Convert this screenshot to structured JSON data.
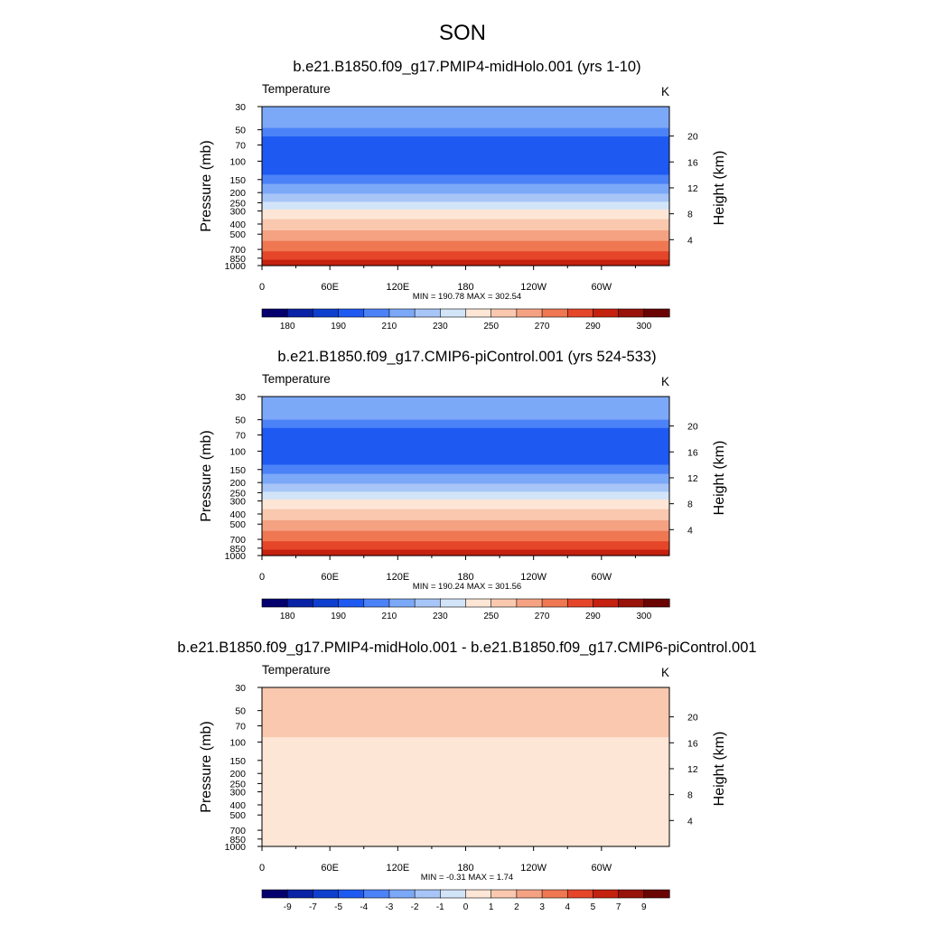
{
  "figure_title": "SON",
  "chart_data": [
    {
      "type": "heatmap",
      "title": "b.e21.B1850.f09_g17.PMIP4-midHolo.001 (yrs 1-10)",
      "variable": "Temperature",
      "units": "K",
      "ylabel": "Pressure (mb)",
      "y2label": "Height (km)",
      "x_ticks": [
        "0",
        "60E",
        "120E",
        "180",
        "120W",
        "60W"
      ],
      "x_tick_values": [
        0,
        60,
        120,
        180,
        240,
        300
      ],
      "xlim": [
        0,
        360
      ],
      "y_ticks": [
        "30",
        "50",
        "70",
        "100",
        "150",
        "200",
        "250",
        "300",
        "400",
        "500",
        "700",
        "850",
        "1000"
      ],
      "y_tick_values": [
        30,
        50,
        70,
        100,
        150,
        200,
        250,
        300,
        400,
        500,
        700,
        850,
        1000
      ],
      "ylim": [
        1000,
        30
      ],
      "y_scale": "log",
      "y2_ticks": [
        "4",
        "8",
        "12",
        "16",
        "20"
      ],
      "y2_tick_values": [
        4,
        8,
        12,
        16,
        20
      ],
      "stats": "MIN = 190.78  MAX = 302.54",
      "colorbar_labels": [
        "180",
        "190",
        "210",
        "230",
        "250",
        "270",
        "290",
        "300"
      ],
      "colorbar_levels": [
        180,
        185,
        190,
        200,
        210,
        220,
        230,
        240,
        250,
        260,
        270,
        280,
        290,
        295,
        300
      ],
      "bands": [
        {
          "top": 30,
          "bottom": 48,
          "value": 215
        },
        {
          "top": 48,
          "bottom": 58,
          "value": 205
        },
        {
          "top": 58,
          "bottom": 135,
          "value": 195
        },
        {
          "top": 135,
          "bottom": 165,
          "value": 205
        },
        {
          "top": 165,
          "bottom": 205,
          "value": 215
        },
        {
          "top": 205,
          "bottom": 245,
          "value": 225
        },
        {
          "top": 245,
          "bottom": 290,
          "value": 235
        },
        {
          "top": 290,
          "bottom": 360,
          "value": 245
        },
        {
          "top": 360,
          "bottom": 460,
          "value": 255
        },
        {
          "top": 460,
          "bottom": 580,
          "value": 265
        },
        {
          "top": 580,
          "bottom": 730,
          "value": 275
        },
        {
          "top": 730,
          "bottom": 880,
          "value": 285
        },
        {
          "top": 880,
          "bottom": 1000,
          "value": 292
        }
      ]
    },
    {
      "type": "heatmap",
      "title": "b.e21.B1850.f09_g17.CMIP6-piControl.001 (yrs 524-533)",
      "variable": "Temperature",
      "units": "K",
      "ylabel": "Pressure (mb)",
      "y2label": "Height (km)",
      "x_ticks": [
        "0",
        "60E",
        "120E",
        "180",
        "120W",
        "60W"
      ],
      "x_tick_values": [
        0,
        60,
        120,
        180,
        240,
        300
      ],
      "xlim": [
        0,
        360
      ],
      "y_ticks": [
        "30",
        "50",
        "70",
        "100",
        "150",
        "200",
        "250",
        "300",
        "400",
        "500",
        "700",
        "850",
        "1000"
      ],
      "y_tick_values": [
        30,
        50,
        70,
        100,
        150,
        200,
        250,
        300,
        400,
        500,
        700,
        850,
        1000
      ],
      "ylim": [
        1000,
        30
      ],
      "y_scale": "log",
      "y2_ticks": [
        "4",
        "8",
        "12",
        "16",
        "20"
      ],
      "y2_tick_values": [
        4,
        8,
        12,
        16,
        20
      ],
      "stats": "MIN = 190.24  MAX = 301.56",
      "colorbar_labels": [
        "180",
        "190",
        "210",
        "230",
        "250",
        "270",
        "290",
        "300"
      ],
      "colorbar_levels": [
        180,
        185,
        190,
        200,
        210,
        220,
        230,
        240,
        250,
        260,
        270,
        280,
        290,
        295,
        300
      ],
      "bands": [
        {
          "top": 30,
          "bottom": 50,
          "value": 215
        },
        {
          "top": 50,
          "bottom": 60,
          "value": 205
        },
        {
          "top": 60,
          "bottom": 135,
          "value": 195
        },
        {
          "top": 135,
          "bottom": 165,
          "value": 205
        },
        {
          "top": 165,
          "bottom": 205,
          "value": 215
        },
        {
          "top": 205,
          "bottom": 245,
          "value": 225
        },
        {
          "top": 245,
          "bottom": 290,
          "value": 235
        },
        {
          "top": 290,
          "bottom": 360,
          "value": 245
        },
        {
          "top": 360,
          "bottom": 460,
          "value": 255
        },
        {
          "top": 460,
          "bottom": 580,
          "value": 265
        },
        {
          "top": 580,
          "bottom": 730,
          "value": 275
        },
        {
          "top": 730,
          "bottom": 880,
          "value": 285
        },
        {
          "top": 880,
          "bottom": 1000,
          "value": 292
        }
      ]
    },
    {
      "type": "heatmap",
      "title": "b.e21.B1850.f09_g17.PMIP4-midHolo.001 - b.e21.B1850.f09_g17.CMIP6-piControl.001",
      "variable": "Temperature",
      "units": "K",
      "ylabel": "Pressure (mb)",
      "y2label": "Height (km)",
      "x_ticks": [
        "0",
        "60E",
        "120E",
        "180",
        "120W",
        "60W"
      ],
      "x_tick_values": [
        0,
        60,
        120,
        180,
        240,
        300
      ],
      "xlim": [
        0,
        360
      ],
      "y_ticks": [
        "30",
        "50",
        "70",
        "100",
        "150",
        "200",
        "250",
        "300",
        "400",
        "500",
        "700",
        "850",
        "1000"
      ],
      "y_tick_values": [
        30,
        50,
        70,
        100,
        150,
        200,
        250,
        300,
        400,
        500,
        700,
        850,
        1000
      ],
      "ylim": [
        1000,
        30
      ],
      "y_scale": "log",
      "y2_ticks": [
        "4",
        "8",
        "12",
        "16",
        "20"
      ],
      "y2_tick_values": [
        4,
        8,
        12,
        16,
        20
      ],
      "stats": "MIN =  -0.31  MAX =   1.74",
      "colorbar_labels": [
        "-9",
        "-7",
        "-5",
        "-4",
        "-3",
        "-2",
        "-1",
        "0",
        "1",
        "2",
        "3",
        "4",
        "5",
        "7",
        "9"
      ],
      "colorbar_levels": [
        -9,
        -7,
        -5,
        -4,
        -3,
        -2,
        -1,
        0,
        1,
        2,
        3,
        4,
        5,
        7,
        9
      ],
      "bands": [
        {
          "top": 30,
          "bottom": 90,
          "value": 1.5
        },
        {
          "top": 90,
          "bottom": 1000,
          "value": 0.5
        }
      ]
    }
  ],
  "colorbar_colors": [
    "#04006e",
    "#0a22a6",
    "#0f3fce",
    "#1e5af2",
    "#4c82f7",
    "#7ca8f8",
    "#a7c5f7",
    "#d2e4f8",
    "#fde6d6",
    "#f9c8ae",
    "#f5a283",
    "#ef7752",
    "#e5462a",
    "#c5210f",
    "#98120a",
    "#6a0403"
  ]
}
